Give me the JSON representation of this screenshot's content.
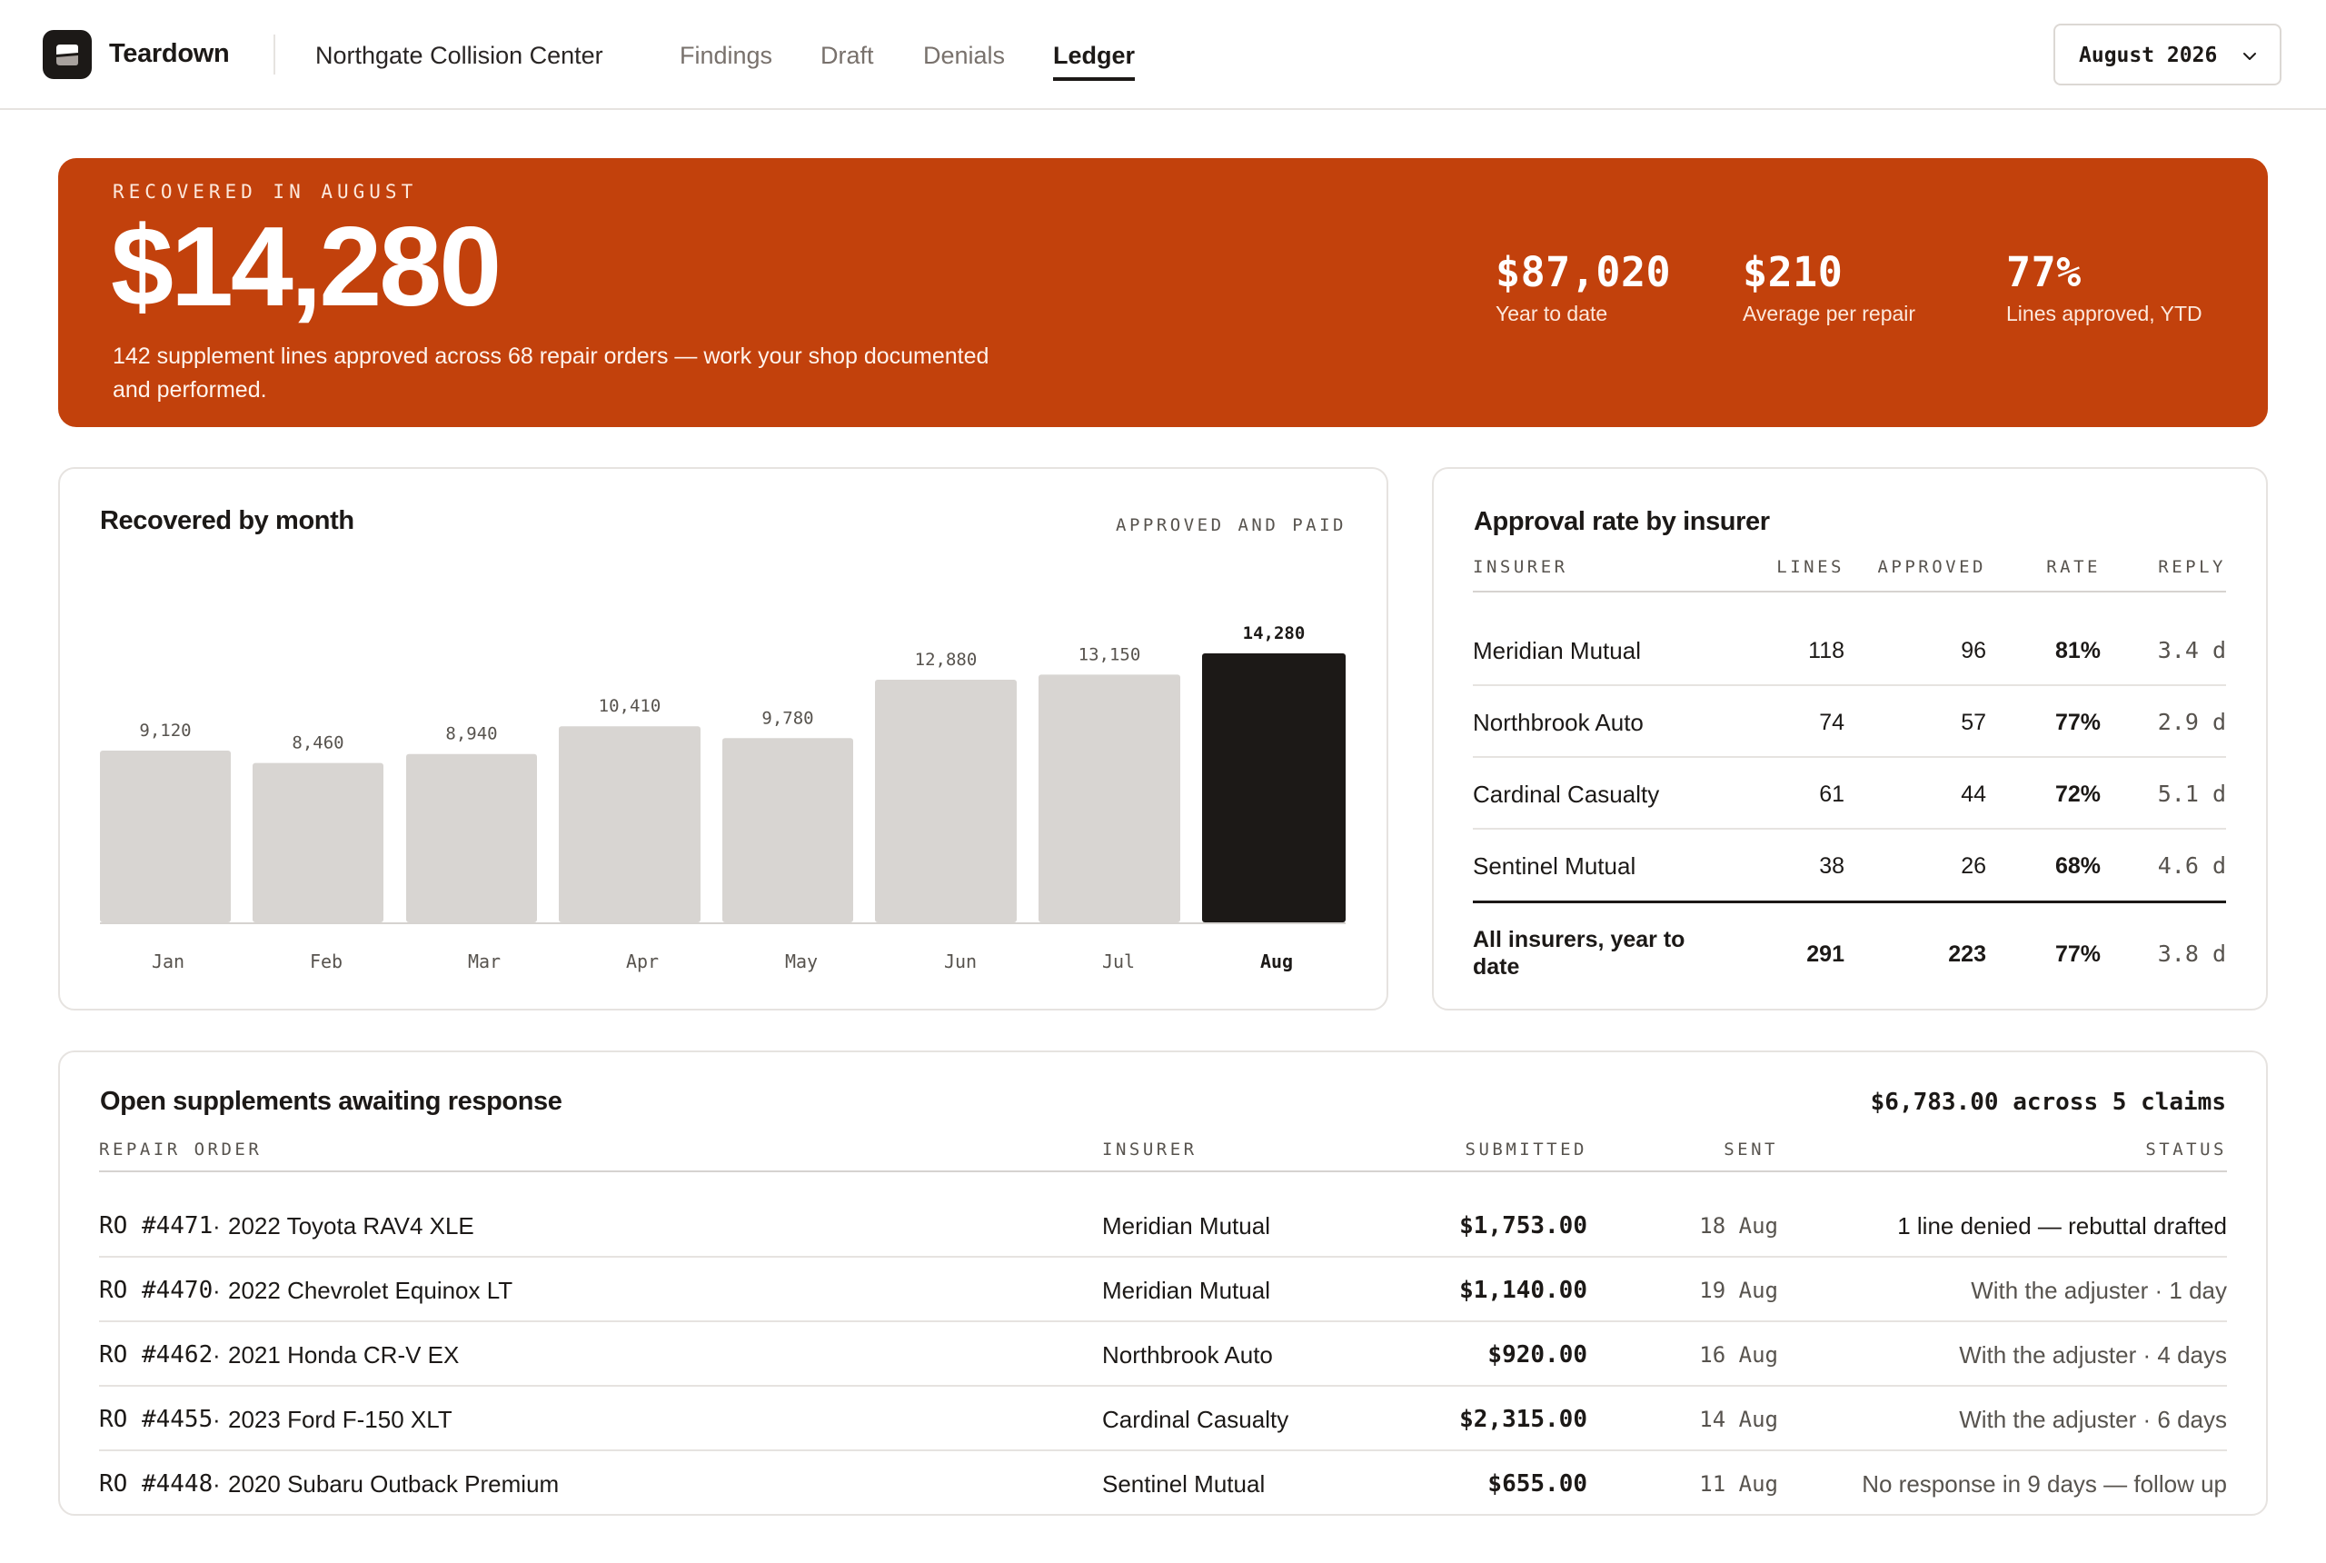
{
  "app": {
    "brand": "Teardown",
    "shop": "Northgate Collision Center",
    "nav": [
      {
        "label": "Findings",
        "active": false
      },
      {
        "label": "Draft",
        "active": false
      },
      {
        "label": "Denials",
        "active": false
      },
      {
        "label": "Ledger",
        "active": true
      }
    ],
    "period_select": "August 2026"
  },
  "hero": {
    "eyebrow": "RECOVERED IN AUGUST",
    "amount": "$14,280",
    "description": "142 supplement lines approved across 68 repair orders — work your shop documented and performed.",
    "stats": [
      {
        "value": "$87,020",
        "label": "Year to date"
      },
      {
        "value": "$210",
        "label": "Average per repair"
      },
      {
        "value": "77%",
        "label": "Lines approved, YTD"
      }
    ],
    "color": "#c2410c"
  },
  "recovered_chart": {
    "title": "Recovered by month",
    "note": "APPROVED AND PAID"
  },
  "chart_data": {
    "type": "bar",
    "categories": [
      "Jan",
      "Feb",
      "Mar",
      "Apr",
      "May",
      "Jun",
      "Jul",
      "Aug"
    ],
    "values": [
      9120,
      8460,
      8940,
      10410,
      9780,
      12880,
      13150,
      14280
    ],
    "value_labels": [
      "9,120",
      "8,460",
      "8,940",
      "10,410",
      "9,780",
      "12,880",
      "13,150",
      "14,280"
    ],
    "title": "Recovered by month",
    "subtitle": "APPROVED AND PAID",
    "highlight_index": 7,
    "colors": {
      "bar": "#d8d5d2",
      "highlight": "#1c1917"
    },
    "grid": false,
    "ylim": [
      0,
      14280
    ]
  },
  "insurers": {
    "title": "Approval rate by insurer",
    "columns": [
      "INSURER",
      "LINES",
      "APPROVED",
      "RATE",
      "REPLY"
    ],
    "rows": [
      {
        "name": "Meridian Mutual",
        "lines": "118",
        "approved": "96",
        "rate": "81%",
        "reply": "3.4 d"
      },
      {
        "name": "Northbrook Auto",
        "lines": "74",
        "approved": "57",
        "rate": "77%",
        "reply": "2.9 d"
      },
      {
        "name": "Cardinal Casualty",
        "lines": "61",
        "approved": "44",
        "rate": "72%",
        "reply": "5.1 d"
      },
      {
        "name": "Sentinel Mutual",
        "lines": "38",
        "approved": "26",
        "rate": "68%",
        "reply": "4.6 d"
      }
    ],
    "total": {
      "name": "All insurers, year to date",
      "lines": "291",
      "approved": "223",
      "rate": "77%",
      "reply": "3.8 d"
    }
  },
  "supplements": {
    "title": "Open supplements awaiting response",
    "summary": "$6,783.00 across 5 claims",
    "columns": [
      "REPAIR ORDER",
      "INSURER",
      "SUBMITTED",
      "SENT",
      "STATUS"
    ],
    "rows": [
      {
        "ro": "RO #4471",
        "vehicle": "2022 Toyota RAV4 XLE",
        "insurer": "Meridian Mutual",
        "submitted": "$1,753.00",
        "sent": "18 Aug",
        "status": "1 line denied — rebuttal drafted",
        "emphasis": true
      },
      {
        "ro": "RO #4470",
        "vehicle": "2022 Chevrolet Equinox LT",
        "insurer": "Meridian Mutual",
        "submitted": "$1,140.00",
        "sent": "19 Aug",
        "status": "With the adjuster · 1 day",
        "emphasis": false
      },
      {
        "ro": "RO #4462",
        "vehicle": "2021 Honda CR-V EX",
        "insurer": "Northbrook Auto",
        "submitted": "$920.00",
        "sent": "16 Aug",
        "status": "With the adjuster · 4 days",
        "emphasis": false
      },
      {
        "ro": "RO #4455",
        "vehicle": "2023 Ford F-150 XLT",
        "insurer": "Cardinal Casualty",
        "submitted": "$2,315.00",
        "sent": "14 Aug",
        "status": "With the adjuster · 6 days",
        "emphasis": false
      },
      {
        "ro": "RO #4448",
        "vehicle": "2020 Subaru Outback Premium",
        "insurer": "Sentinel Mutual",
        "submitted": "$655.00",
        "sent": "11 Aug",
        "status": "No response in 9 days — follow up",
        "emphasis": false
      }
    ]
  }
}
